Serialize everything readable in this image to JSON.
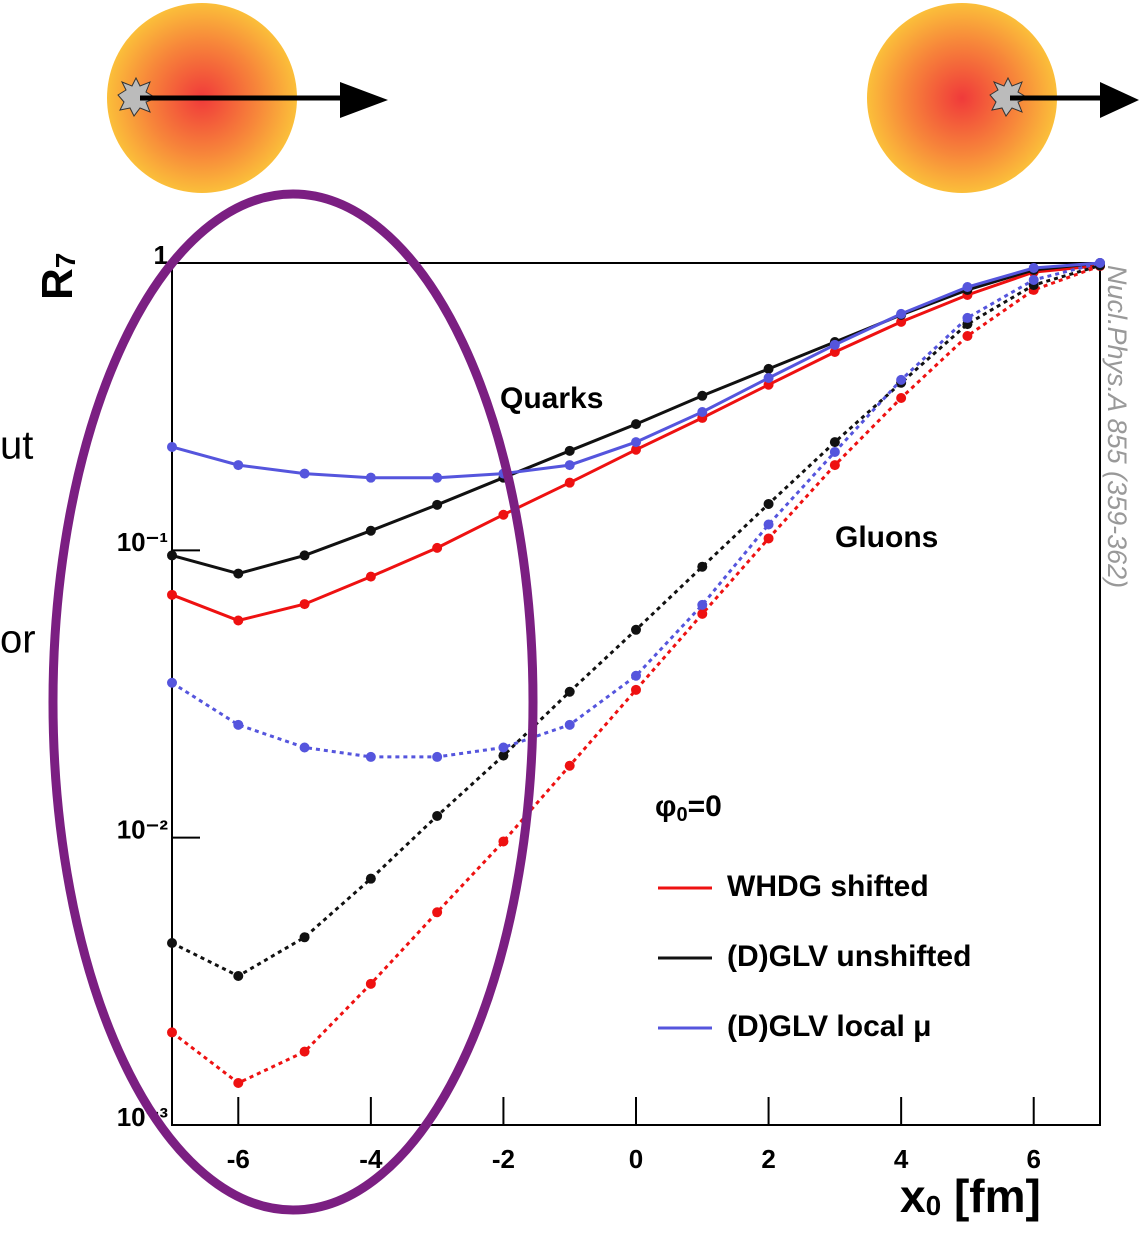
{
  "chart_data": {
    "type": "line",
    "x": [
      -7,
      -6,
      -5,
      -4,
      -3,
      -2,
      -1,
      0,
      1,
      2,
      3,
      4,
      5,
      6,
      7
    ],
    "xlim": [
      -7,
      7
    ],
    "xticks": [
      -6,
      -4,
      -2,
      0,
      2,
      4,
      6
    ],
    "ylim": [
      0.001,
      1
    ],
    "log_y": true,
    "yticks": [
      {
        "value": 1,
        "label": "1"
      },
      {
        "value": 0.1,
        "label": "10⁻¹"
      },
      {
        "value": 0.01,
        "label": "10⁻²"
      },
      {
        "value": 0.001,
        "label": "10⁻³"
      }
    ],
    "y_label": {
      "main": "R",
      "sub": "7"
    },
    "x_label": {
      "main": "x",
      "sub": "0",
      "rest": " [fm]"
    },
    "annotations": {
      "quarks": "Quarks",
      "gluons": "Gluons",
      "citation": "Nucl.Phys.A 855 (359-362)",
      "cut_left_1": "ut",
      "cut_left_2": "or"
    },
    "legend_title": {
      "main": "φ",
      "sub": "0",
      "rest": "=0"
    },
    "series": [
      {
        "name": "WHDG shifted",
        "group": "Quarks",
        "style": "solid",
        "color": "#ee1111",
        "values": [
          0.07,
          0.057,
          0.065,
          0.081,
          0.102,
          0.133,
          0.172,
          0.224,
          0.289,
          0.377,
          0.49,
          0.624,
          0.774,
          0.93,
          0.98
        ]
      },
      {
        "name": "(D)GLV unshifted",
        "group": "Quarks",
        "style": "solid",
        "color": "#111111",
        "values": [
          0.096,
          0.083,
          0.096,
          0.117,
          0.144,
          0.179,
          0.222,
          0.275,
          0.345,
          0.428,
          0.531,
          0.66,
          0.806,
          0.946,
          1.0
        ]
      },
      {
        "name": "(D)GLV local μ",
        "group": "Quarks",
        "style": "solid",
        "color": "#5555dd",
        "values": [
          0.229,
          0.198,
          0.185,
          0.179,
          0.179,
          0.185,
          0.198,
          0.238,
          0.303,
          0.398,
          0.519,
          0.665,
          0.825,
          0.961,
          1.0
        ]
      },
      {
        "name": "WHDG shifted",
        "group": "Gluons",
        "style": "dotted",
        "color": "#ee1111",
        "values": [
          0.0021,
          0.0014,
          0.0018,
          0.0031,
          0.0055,
          0.0097,
          0.0178,
          0.0327,
          0.0601,
          0.11,
          0.198,
          0.339,
          0.557,
          0.806,
          0.976
        ]
      },
      {
        "name": "(D)GLV unshifted",
        "group": "Gluons",
        "style": "dotted",
        "color": "#111111",
        "values": [
          0.0043,
          0.0033,
          0.0045,
          0.0072,
          0.0119,
          0.0193,
          0.0322,
          0.0529,
          0.0877,
          0.145,
          0.238,
          0.383,
          0.613,
          0.838,
          0.98
        ]
      },
      {
        "name": "(D)GLV local μ",
        "group": "Gluons",
        "style": "dotted",
        "color": "#5555dd",
        "values": [
          0.0346,
          0.0247,
          0.0206,
          0.0191,
          0.0191,
          0.0206,
          0.0247,
          0.0366,
          0.0646,
          0.123,
          0.22,
          0.392,
          0.644,
          0.873,
          1.0
        ]
      }
    ]
  }
}
